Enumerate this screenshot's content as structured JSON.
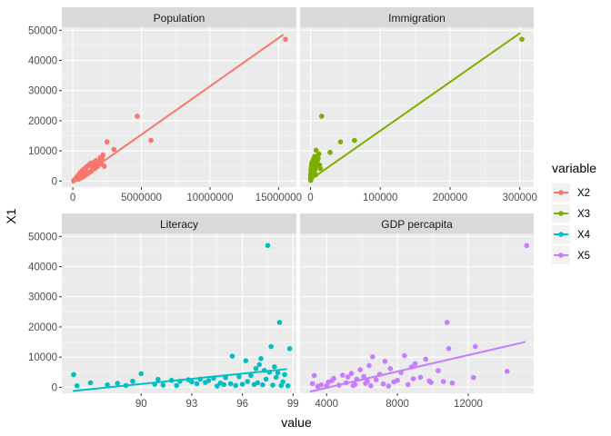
{
  "chart_data": {
    "type": "scatter",
    "ylabel": "X1",
    "xlabel": "value",
    "legend_title": "variable",
    "legend_placement": "right",
    "grid": true,
    "facet_labels": [
      "Population",
      "Immigration",
      "Literacy",
      "GDP percapita"
    ],
    "ylim": [
      -2000,
      51000
    ],
    "y_ticks": [
      0,
      10000,
      20000,
      30000,
      40000,
      50000
    ],
    "y_tick_labels": [
      "0",
      "10000",
      "20000",
      "30000",
      "40000",
      "50000"
    ],
    "panels": [
      {
        "title": "Population",
        "series": "X2",
        "color": "#F8766D",
        "xlim": [
          -800000,
          16300000
        ],
        "x_ticks": [
          0,
          5000000,
          10000000,
          15000000
        ],
        "x_tick_labels": [
          "0",
          "5000000",
          "10000000",
          "15000000"
        ],
        "trend": [
          [
            0,
            -600
          ],
          [
            15300000,
            48400
          ]
        ],
        "points": [
          [
            15500000,
            47000
          ],
          [
            4700000,
            21500
          ],
          [
            5700000,
            13500
          ],
          [
            2500000,
            13000
          ],
          [
            3000000,
            10500
          ],
          [
            2200000,
            8700
          ],
          [
            2000000,
            7800
          ],
          [
            1700000,
            6800
          ],
          [
            1500000,
            6200
          ],
          [
            1300000,
            5900
          ],
          [
            1200000,
            5500
          ],
          [
            1100000,
            5000
          ],
          [
            1000000,
            4700
          ],
          [
            900000,
            4300
          ],
          [
            800000,
            3900
          ],
          [
            700000,
            3500
          ],
          [
            600000,
            3100
          ],
          [
            500000,
            2600
          ],
          [
            450000,
            2200
          ],
          [
            400000,
            1900
          ],
          [
            350000,
            1600
          ],
          [
            300000,
            1300
          ],
          [
            250000,
            1000
          ],
          [
            200000,
            800
          ],
          [
            150000,
            500
          ],
          [
            100000,
            300
          ],
          [
            60000,
            150
          ],
          [
            1800000,
            4800
          ],
          [
            2100000,
            5600
          ],
          [
            1600000,
            4100
          ],
          [
            1400000,
            3600
          ],
          [
            2300000,
            4900
          ],
          [
            1900000,
            6400
          ],
          [
            1250000,
            3000
          ],
          [
            950000,
            2500
          ],
          [
            750000,
            2000
          ],
          [
            550000,
            1500
          ],
          [
            650000,
            1200
          ],
          [
            850000,
            1700
          ],
          [
            1050000,
            2300
          ],
          [
            1150000,
            2700
          ],
          [
            1350000,
            3300
          ],
          [
            1450000,
            4500
          ],
          [
            1550000,
            5200
          ],
          [
            1650000,
            6000
          ],
          [
            1750000,
            5400
          ],
          [
            2050000,
            6100
          ],
          [
            2150000,
            7200
          ],
          [
            320000,
            800
          ],
          [
            420000,
            600
          ],
          [
            520000,
            900
          ],
          [
            620000,
            1100
          ],
          [
            720000,
            1400
          ],
          [
            820000,
            2800
          ],
          [
            920000,
            3700
          ]
        ]
      },
      {
        "title": "Immigration",
        "series": "X3",
        "color": "#7CAE00",
        "xlim": [
          -15000,
          320000
        ],
        "x_ticks": [
          0,
          100000,
          200000,
          300000
        ],
        "x_tick_labels": [
          "0",
          "100000",
          "200000",
          "300000"
        ],
        "trend": [
          [
            0,
            500
          ],
          [
            300000,
            49000
          ]
        ],
        "points": [
          [
            303000,
            47000
          ],
          [
            16000,
            21500
          ],
          [
            63000,
            13500
          ],
          [
            43000,
            13000
          ],
          [
            28000,
            9500
          ],
          [
            8000,
            10200
          ],
          [
            12000,
            9000
          ],
          [
            6000,
            8200
          ],
          [
            4000,
            7200
          ],
          [
            3000,
            6600
          ],
          [
            2000,
            6000
          ],
          [
            1500,
            5500
          ],
          [
            2500,
            5000
          ],
          [
            1000,
            4400
          ],
          [
            3500,
            4000
          ],
          [
            500,
            3600
          ],
          [
            1200,
            3100
          ],
          [
            800,
            2700
          ],
          [
            600,
            2300
          ],
          [
            400,
            2000
          ],
          [
            300,
            1700
          ],
          [
            200,
            1400
          ],
          [
            150,
            1100
          ],
          [
            100,
            800
          ],
          [
            50,
            500
          ],
          [
            5000,
            3300
          ],
          [
            7000,
            4700
          ],
          [
            9000,
            5800
          ],
          [
            10000,
            6800
          ],
          [
            11000,
            7500
          ],
          [
            4500,
            2600
          ],
          [
            2200,
            1800
          ],
          [
            1800,
            1200
          ],
          [
            900,
            900
          ],
          [
            700,
            600
          ],
          [
            13000,
            5300
          ],
          [
            14000,
            4200
          ],
          [
            6500,
            3800
          ],
          [
            5500,
            2900
          ],
          [
            7500,
            2100
          ],
          [
            350,
            300
          ],
          [
            250,
            200
          ],
          [
            1100,
            1500
          ],
          [
            1300,
            2400
          ],
          [
            1700,
            3400
          ]
        ]
      },
      {
        "title": "Literacy",
        "series": "X4",
        "color": "#00BFC4",
        "xlim": [
          85.3,
          99.2
        ],
        "x_ticks": [
          90,
          93,
          96,
          99
        ],
        "x_tick_labels": [
          "90",
          "93",
          "96",
          "99"
        ],
        "trend": [
          [
            86.0,
            -1200
          ],
          [
            98.6,
            6000
          ]
        ],
        "points": [
          [
            97.5,
            47000
          ],
          [
            98.2,
            21500
          ],
          [
            97.7,
            13500
          ],
          [
            98.8,
            12800
          ],
          [
            95.4,
            10300
          ],
          [
            97.1,
            9500
          ],
          [
            96.2,
            8800
          ],
          [
            97.0,
            7500
          ],
          [
            97.9,
            6800
          ],
          [
            96.8,
            6200
          ],
          [
            97.3,
            5600
          ],
          [
            97.6,
            5000
          ],
          [
            98.1,
            4800
          ],
          [
            98.5,
            4200
          ],
          [
            96.5,
            3900
          ],
          [
            95.8,
            3500
          ],
          [
            95.0,
            3200
          ],
          [
            94.3,
            3000
          ],
          [
            93.5,
            2700
          ],
          [
            92.8,
            2500
          ],
          [
            91.8,
            2300
          ],
          [
            92.3,
            2000
          ],
          [
            93.0,
            1800
          ],
          [
            93.8,
            1600
          ],
          [
            94.7,
            1400
          ],
          [
            95.3,
            1200
          ],
          [
            96.0,
            1000
          ],
          [
            96.7,
            900
          ],
          [
            97.2,
            800
          ],
          [
            97.8,
            700
          ],
          [
            98.3,
            600
          ],
          [
            98.7,
            500
          ],
          [
            86.0,
            4200
          ],
          [
            87.0,
            1500
          ],
          [
            88.0,
            800
          ],
          [
            89.1,
            600
          ],
          [
            90.0,
            4500
          ],
          [
            90.8,
            1000
          ],
          [
            91.3,
            700
          ],
          [
            92.1,
            600
          ],
          [
            93.3,
            1200
          ],
          [
            94.0,
            2200
          ],
          [
            94.9,
            900
          ],
          [
            95.6,
            600
          ],
          [
            96.3,
            1900
          ],
          [
            97.4,
            2700
          ],
          [
            98.0,
            3300
          ],
          [
            98.4,
            1800
          ],
          [
            89.5,
            2000
          ],
          [
            91.0,
            2600
          ],
          [
            86.2,
            500
          ],
          [
            88.6,
            1300
          ],
          [
            94.5,
            400
          ],
          [
            96.9,
            1500
          ]
        ]
      },
      {
        "title": "GDP percapita",
        "series": "X5",
        "color": "#C77CFF",
        "xlim": [
          2500,
          15700
        ],
        "x_ticks": [
          4000,
          8000,
          12000
        ],
        "x_tick_labels": [
          "4000",
          "8000",
          "12000"
        ],
        "trend": [
          [
            3100,
            -1400
          ],
          [
            15200,
            15000
          ]
        ],
        "points": [
          [
            15300,
            47000
          ],
          [
            10800,
            21500
          ],
          [
            12400,
            13500
          ],
          [
            10900,
            12800
          ],
          [
            8400,
            10500
          ],
          [
            9600,
            9300
          ],
          [
            6600,
            10100
          ],
          [
            7300,
            8600
          ],
          [
            9000,
            7800
          ],
          [
            6400,
            7200
          ],
          [
            8800,
            6700
          ],
          [
            7600,
            6200
          ],
          [
            5900,
            5800
          ],
          [
            10300,
            5500
          ],
          [
            14200,
            5300
          ],
          [
            8200,
            4900
          ],
          [
            5400,
            4600
          ],
          [
            7000,
            4300
          ],
          [
            4900,
            4000
          ],
          [
            3300,
            3900
          ],
          [
            6100,
            3600
          ],
          [
            9300,
            3300
          ],
          [
            12300,
            3200
          ],
          [
            4400,
            2900
          ],
          [
            5700,
            2700
          ],
          [
            6800,
            2500
          ],
          [
            8000,
            2300
          ],
          [
            9800,
            2100
          ],
          [
            10600,
            1900
          ],
          [
            4100,
            1700
          ],
          [
            5100,
            1500
          ],
          [
            6200,
            1300
          ],
          [
            7200,
            1100
          ],
          [
            8600,
            900
          ],
          [
            3700,
            800
          ],
          [
            4700,
            700
          ],
          [
            5500,
            600
          ],
          [
            6500,
            500
          ],
          [
            7500,
            400
          ],
          [
            3200,
            1200
          ],
          [
            9900,
            1600
          ],
          [
            11100,
            1400
          ],
          [
            4300,
            2200
          ],
          [
            5200,
            3400
          ],
          [
            6300,
            2000
          ],
          [
            7800,
            1800
          ],
          [
            8900,
            2800
          ],
          [
            3500,
            300
          ],
          [
            4000,
            500
          ],
          [
            5600,
            900
          ]
        ]
      }
    ]
  }
}
